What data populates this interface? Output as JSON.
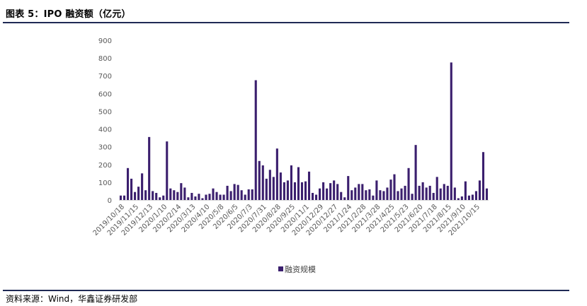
{
  "header": {
    "title": "图表 5：IPO 融资额（亿元）"
  },
  "footer": {
    "source": "资料来源：Wind，华鑫证券研发部"
  },
  "colors": {
    "bar": "#3b1f6e",
    "rule": "#1f2a55",
    "axis": "#d9d9d9"
  },
  "chart_data": {
    "type": "bar",
    "title": "",
    "xlabel": "",
    "ylabel": "",
    "ylim": [
      0,
      900
    ],
    "yticks": [
      0,
      100,
      200,
      300,
      400,
      500,
      600,
      700,
      800,
      900
    ],
    "grid": false,
    "legend": "bottom-center",
    "x_tick_labels": [
      "2019/10/18",
      "2019/11/15",
      "2019/12/13",
      "2020/1/10",
      "2020/2/14",
      "2020/3/13",
      "2020/4/10",
      "2020/5/8",
      "2020/6/5",
      "2020/7/3",
      "2020/7/31",
      "2020/8/28",
      "2020/9/25",
      "2020/11/1",
      "2020/12/29",
      "2020/12/27",
      "2021/1/24",
      "2021/2/28",
      "2021/3/28",
      "2021/4/25",
      "2021/5/23",
      "2021/6/20",
      "2021/7/18",
      "2021/8/15",
      "2021/9/10",
      "2021/10/15"
    ],
    "series": [
      {
        "name": "融资规模",
        "values": [
          25,
          25,
          180,
          120,
          45,
          75,
          150,
          55,
          355,
          50,
          40,
          15,
          25,
          330,
          65,
          55,
          45,
          95,
          70,
          15,
          40,
          20,
          35,
          10,
          30,
          35,
          65,
          45,
          30,
          30,
          80,
          50,
          90,
          85,
          55,
          30,
          60,
          60,
          675,
          220,
          195,
          120,
          170,
          130,
          290,
          155,
          100,
          110,
          195,
          100,
          185,
          100,
          105,
          160,
          40,
          30,
          65,
          100,
          65,
          95,
          110,
          90,
          45,
          15,
          135,
          55,
          70,
          90,
          90,
          55,
          60,
          25,
          110,
          55,
          50,
          70,
          115,
          145,
          50,
          65,
          80,
          180,
          35,
          310,
          80,
          100,
          70,
          80,
          40,
          130,
          65,
          90,
          80,
          775,
          70,
          10,
          20,
          105,
          25,
          30,
          50,
          110,
          270,
          65
        ]
      }
    ]
  }
}
